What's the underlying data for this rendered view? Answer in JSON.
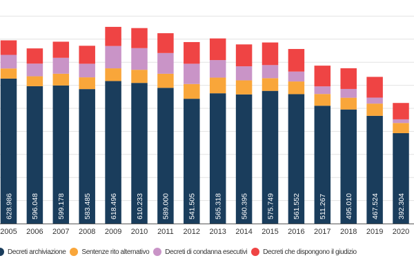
{
  "chart_data": {
    "type": "bar",
    "stacked": true,
    "categories": [
      "2005",
      "2006",
      "2007",
      "2008",
      "2009",
      "2010",
      "2011",
      "2012",
      "2013",
      "2014",
      "2015",
      "2016",
      "2017",
      "2018",
      "2019",
      "2020"
    ],
    "series": [
      {
        "name": "Decreti archiviazione",
        "color": "#1a3d5c",
        "values": [
          628986,
          596048,
          599178,
          583485,
          618496,
          610233,
          589000,
          541505,
          565318,
          560395,
          575749,
          561552,
          511267,
          495010,
          467524,
          392304
        ],
        "labels": [
          "628.986",
          "596.048",
          "599.178",
          "583.485",
          "618.496",
          "610.233",
          "589.000",
          "541.505",
          "565.318",
          "560.395",
          "575.749",
          "561.552",
          "511.267",
          "495.010",
          "467.524",
          "392.304"
        ]
      },
      {
        "name": "Sentenze rito alternativo",
        "color": "#f9a63a",
        "values": [
          44000,
          43000,
          51000,
          51000,
          55000,
          57000,
          61000,
          64000,
          68000,
          61000,
          55000,
          55000,
          51000,
          51000,
          53000,
          44000
        ]
      },
      {
        "name": "Decreti di condanna esecutivi",
        "color": "#c994c7",
        "values": [
          59000,
          55000,
          69000,
          59000,
          97000,
          94000,
          90000,
          88000,
          76000,
          61000,
          57000,
          43000,
          33000,
          38000,
          26000,
          16000
        ]
      },
      {
        "name": "Decreti che dispongono il giudizio",
        "color": "#ef4444",
        "values": [
          63000,
          66000,
          70000,
          78000,
          83000,
          87000,
          86000,
          94000,
          94000,
          95000,
          98000,
          98000,
          90000,
          90000,
          90000,
          71000
        ]
      }
    ],
    "ylim": [
      0,
      900000
    ],
    "grid": true,
    "legend_position": "bottom"
  }
}
